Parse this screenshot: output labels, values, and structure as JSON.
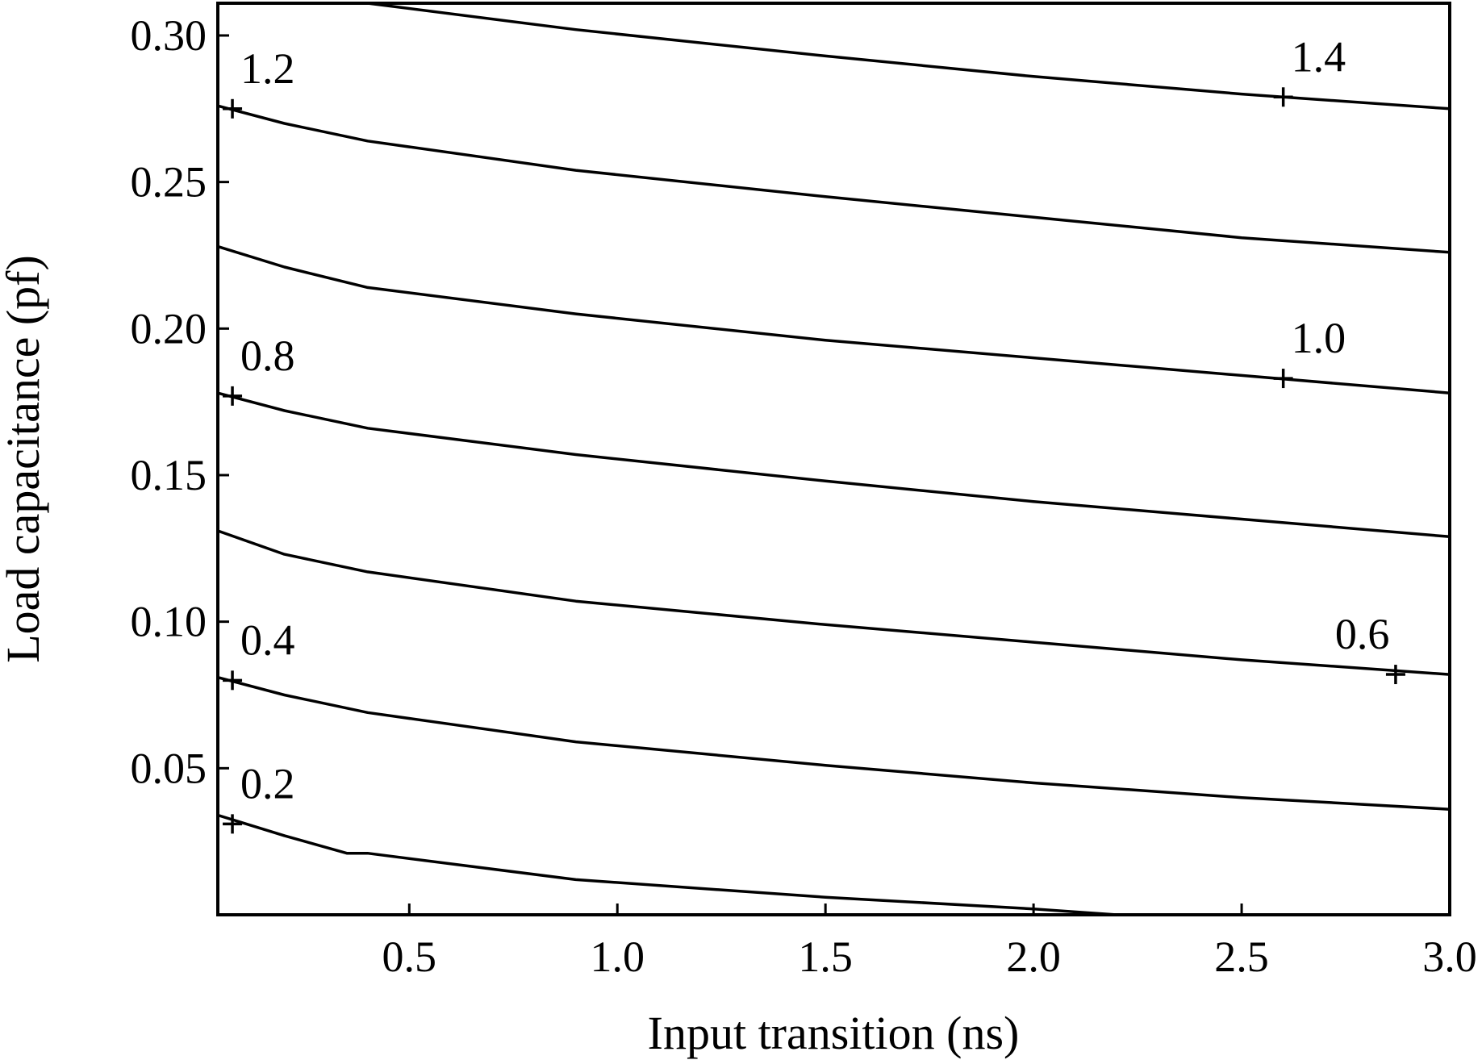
{
  "chart_data": {
    "type": "line",
    "xlabel": "Input transition (ns)",
    "ylabel": "Load capacitance (pf)",
    "xlim": [
      0.04,
      3.0
    ],
    "ylim": [
      0.0,
      0.311
    ],
    "xticks": [
      "0.5",
      "1.0",
      "1.5",
      "2.0",
      "2.5",
      "3.0"
    ],
    "xtick_values": [
      0.5,
      1.0,
      1.5,
      2.0,
      2.5,
      3.0
    ],
    "yticks": [
      "0.05",
      "0.10",
      "0.15",
      "0.20",
      "0.25",
      "0.30"
    ],
    "ytick_values": [
      0.05,
      0.1,
      0.15,
      0.2,
      0.25,
      0.3
    ],
    "grid": false,
    "contours": [
      {
        "level": 0.2,
        "points": [
          [
            0.04,
            0.034
          ],
          [
            0.2,
            0.027
          ],
          [
            0.35,
            0.021
          ],
          [
            0.4,
            0.021
          ],
          [
            0.9,
            0.012
          ],
          [
            1.5,
            0.006
          ],
          [
            2.0,
            0.002
          ],
          [
            2.2,
            0.0
          ]
        ]
      },
      {
        "level": 0.4,
        "points": [
          [
            0.04,
            0.081
          ],
          [
            0.2,
            0.075
          ],
          [
            0.4,
            0.069
          ],
          [
            0.9,
            0.059
          ],
          [
            1.5,
            0.051
          ],
          [
            2.0,
            0.045
          ],
          [
            2.5,
            0.04
          ],
          [
            3.0,
            0.036
          ]
        ]
      },
      {
        "level": 0.6,
        "points": [
          [
            0.04,
            0.131
          ],
          [
            0.2,
            0.123
          ],
          [
            0.4,
            0.117
          ],
          [
            0.9,
            0.107
          ],
          [
            1.5,
            0.099
          ],
          [
            2.0,
            0.093
          ],
          [
            2.5,
            0.087
          ],
          [
            3.0,
            0.082
          ]
        ]
      },
      {
        "level": 0.8,
        "points": [
          [
            0.04,
            0.178
          ],
          [
            0.2,
            0.172
          ],
          [
            0.4,
            0.166
          ],
          [
            0.9,
            0.157
          ],
          [
            1.5,
            0.148
          ],
          [
            2.0,
            0.141
          ],
          [
            2.5,
            0.135
          ],
          [
            3.0,
            0.129
          ]
        ]
      },
      {
        "level": 1.0,
        "points": [
          [
            0.04,
            0.228
          ],
          [
            0.2,
            0.221
          ],
          [
            0.4,
            0.214
          ],
          [
            0.9,
            0.205
          ],
          [
            1.5,
            0.196
          ],
          [
            2.0,
            0.19
          ],
          [
            2.5,
            0.184
          ],
          [
            3.0,
            0.178
          ]
        ]
      },
      {
        "level": 1.2,
        "points": [
          [
            0.04,
            0.276
          ],
          [
            0.2,
            0.27
          ],
          [
            0.4,
            0.264
          ],
          [
            0.9,
            0.254
          ],
          [
            1.5,
            0.245
          ],
          [
            2.0,
            0.238
          ],
          [
            2.5,
            0.231
          ],
          [
            3.0,
            0.226
          ]
        ]
      },
      {
        "level": 1.4,
        "points": [
          [
            0.4,
            0.311
          ],
          [
            0.9,
            0.302
          ],
          [
            1.5,
            0.293
          ],
          [
            2.0,
            0.286
          ],
          [
            2.5,
            0.28
          ],
          [
            3.0,
            0.275
          ]
        ]
      }
    ],
    "labels": [
      {
        "text": "1.2",
        "x": 0.075,
        "y": 0.275
      },
      {
        "text": "1.4",
        "x": 2.6,
        "y": 0.279
      },
      {
        "text": "0.8",
        "x": 0.075,
        "y": 0.177
      },
      {
        "text": "1.0",
        "x": 2.6,
        "y": 0.183
      },
      {
        "text": "0.6",
        "x": 2.87,
        "y": 0.082
      },
      {
        "text": "0.4",
        "x": 0.075,
        "y": 0.08
      },
      {
        "text": "0.2",
        "x": 0.075,
        "y": 0.031
      }
    ]
  }
}
